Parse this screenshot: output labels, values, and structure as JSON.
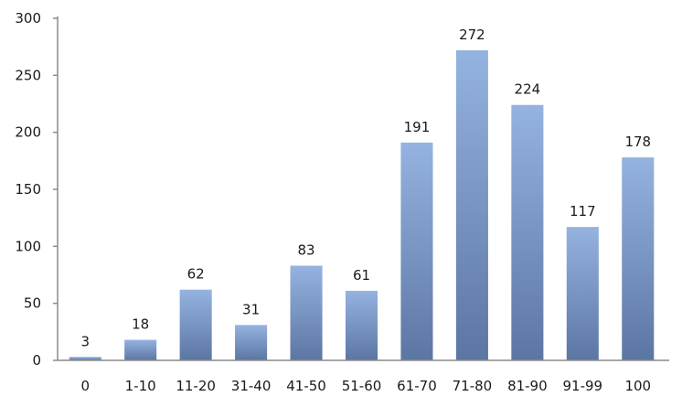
{
  "chart_data": {
    "type": "bar",
    "title": "",
    "xlabel": "",
    "ylabel": "",
    "categories": [
      "0",
      "1-10",
      "11-20",
      "31-40",
      "41-50",
      "51-60",
      "61-70",
      "71-80",
      "81-90",
      "91-99",
      "100"
    ],
    "values": [
      3,
      18,
      62,
      31,
      83,
      61,
      191,
      272,
      224,
      117,
      178
    ],
    "ylim": [
      0,
      300
    ],
    "yticks": [
      0,
      50,
      100,
      150,
      200,
      250,
      300
    ],
    "grid": false,
    "legend": "none",
    "data_labels": true,
    "colors": {
      "bar_top": "#95b3e0",
      "bar_bottom": "#5c76a3",
      "axis": "#8c8c8c",
      "text": "#1a1a1a"
    }
  }
}
